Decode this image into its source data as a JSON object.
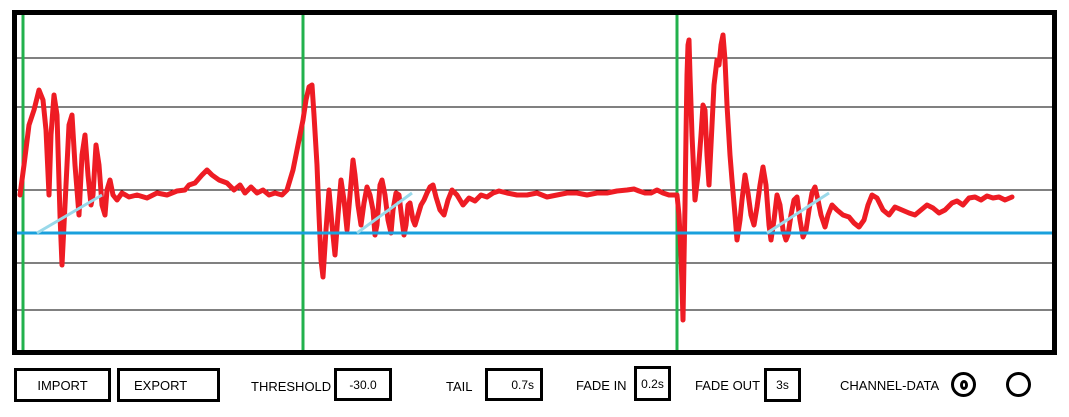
{
  "waveform": {
    "colors": {
      "waveform": "#ee1c24",
      "threshold_line": "#1aa0dc",
      "marker_line": "#22b14c",
      "tail_line": "#99d9ea",
      "grid": "#000000"
    },
    "threshold_value": -30.0,
    "markers_count": 3
  },
  "toolbar": {
    "import_label": "IMPORT",
    "export_label": "EXPORT",
    "threshold_label": "THRESHOLD",
    "threshold_value": "-30.0",
    "tail_label": "TAIL",
    "tail_value": "0.7s",
    "fade_in_label": "FADE IN",
    "fade_in_value": "0.2s",
    "fade_out_label": "FADE OUT",
    "fade_out_value": "3s",
    "channel_data_label": "CHANNEL-DATA",
    "channel_options": [
      {
        "icon": "radio-selected-icon",
        "selected": true
      },
      {
        "icon": "radio-empty-icon",
        "selected": false
      }
    ]
  }
}
